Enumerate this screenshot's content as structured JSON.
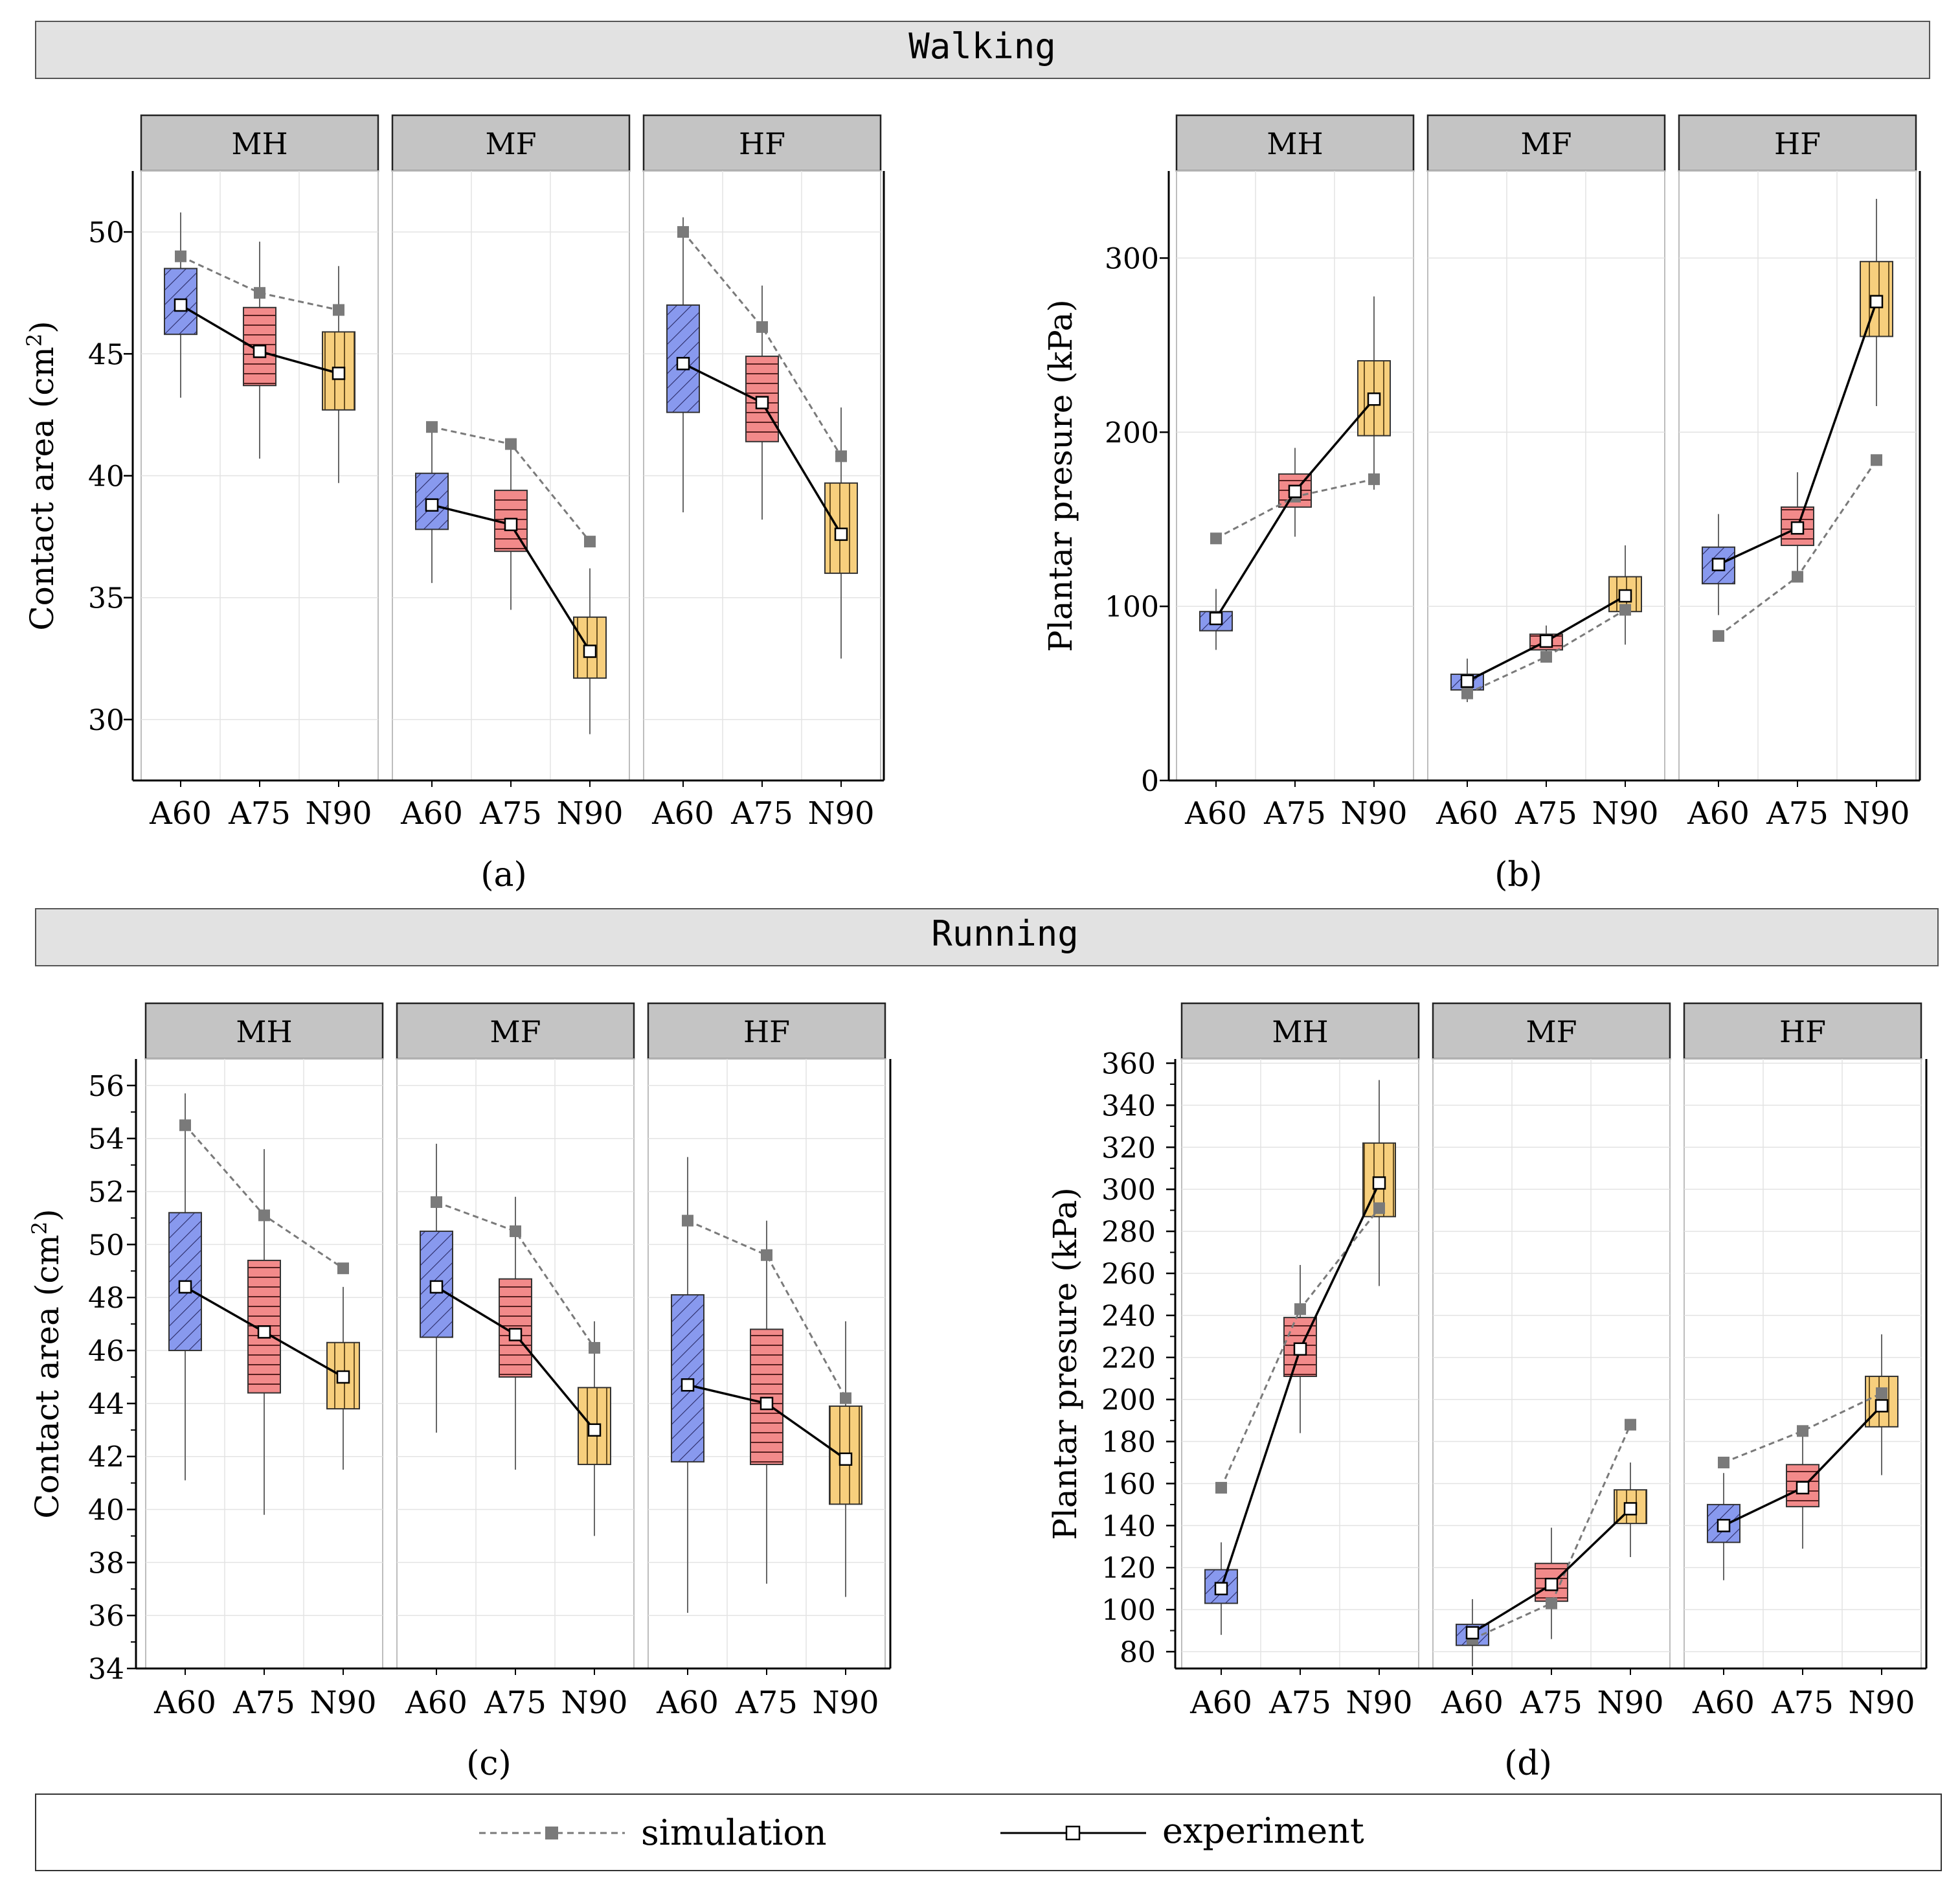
{
  "colors": {
    "A60": "#8899ee",
    "A75": "#f28a8a",
    "N90": "#f7cf7d",
    "simulation": "#7a7a7a",
    "experiment": "#000000"
  },
  "legend": {
    "simulation": "simulation",
    "experiment": "experiment"
  },
  "sections": [
    {
      "title": "Walking",
      "panels": [
        "a",
        "b"
      ]
    },
    {
      "title": "Running",
      "panels": [
        "c",
        "d"
      ]
    }
  ],
  "chart_data": [
    {
      "id": "a",
      "label": "(a)",
      "type": "box",
      "ylabel": "Contact area (cm",
      "ylabel_super": "2",
      "ylabel_close": ")",
      "ylim": [
        27.5,
        52.5
      ],
      "yticks": [
        30,
        35,
        40,
        45,
        50
      ],
      "minor_yticks": [],
      "categories": [
        "A60",
        "A75",
        "N90"
      ],
      "facets": [
        {
          "name": "MH",
          "boxes": [
            {
              "q1": 45.8,
              "q3": 48.5,
              "lo": 43.2,
              "hi": 50.8
            },
            {
              "q1": 43.7,
              "q3": 46.9,
              "lo": 40.7,
              "hi": 49.6
            },
            {
              "q1": 42.7,
              "q3": 45.9,
              "lo": 39.7,
              "hi": 48.6
            }
          ],
          "simulation": [
            49.0,
            47.5,
            46.8
          ],
          "experiment": [
            47.0,
            45.1,
            44.2
          ]
        },
        {
          "name": "MF",
          "boxes": [
            {
              "q1": 37.8,
              "q3": 40.1,
              "lo": 35.6,
              "hi": 42.0
            },
            {
              "q1": 36.9,
              "q3": 39.4,
              "lo": 34.5,
              "hi": 41.4
            },
            {
              "q1": 31.7,
              "q3": 34.2,
              "lo": 29.4,
              "hi": 36.2
            }
          ],
          "simulation": [
            42.0,
            41.3,
            37.3
          ],
          "experiment": [
            38.8,
            38.0,
            32.8
          ]
        },
        {
          "name": "HF",
          "boxes": [
            {
              "q1": 42.6,
              "q3": 47.0,
              "lo": 38.5,
              "hi": 50.6
            },
            {
              "q1": 41.4,
              "q3": 44.9,
              "lo": 38.2,
              "hi": 47.8
            },
            {
              "q1": 36.0,
              "q3": 39.7,
              "lo": 32.5,
              "hi": 42.8
            }
          ],
          "simulation": [
            50.0,
            46.1,
            40.8
          ],
          "experiment": [
            44.6,
            43.0,
            37.6
          ]
        }
      ]
    },
    {
      "id": "b",
      "label": "(b)",
      "type": "box",
      "ylabel": "Plantar presure (kPa)",
      "ylabel_super": "",
      "ylabel_close": "",
      "ylim": [
        0,
        350
      ],
      "yticks": [
        0,
        100,
        200,
        300
      ],
      "minor_yticks": [],
      "categories": [
        "A60",
        "A75",
        "N90"
      ],
      "facets": [
        {
          "name": "MH",
          "boxes": [
            {
              "q1": 86,
              "q3": 97,
              "lo": 75,
              "hi": 110
            },
            {
              "q1": 157,
              "q3": 176,
              "lo": 140,
              "hi": 191
            },
            {
              "q1": 198,
              "q3": 241,
              "lo": 167,
              "hi": 278
            }
          ],
          "simulation": [
            139,
            163,
            173
          ],
          "experiment": [
            93,
            166,
            219
          ]
        },
        {
          "name": "MF",
          "boxes": [
            {
              "q1": 52,
              "q3": 61,
              "lo": 45,
              "hi": 70
            },
            {
              "q1": 75,
              "q3": 84,
              "lo": 68,
              "hi": 89
            },
            {
              "q1": 97,
              "q3": 117,
              "lo": 78,
              "hi": 135
            }
          ],
          "simulation": [
            50,
            71,
            98
          ],
          "experiment": [
            57,
            80,
            106
          ]
        },
        {
          "name": "HF",
          "boxes": [
            {
              "q1": 113,
              "q3": 134,
              "lo": 95,
              "hi": 153
            },
            {
              "q1": 135,
              "q3": 157,
              "lo": 118,
              "hi": 177
            },
            {
              "q1": 255,
              "q3": 298,
              "lo": 215,
              "hi": 334
            }
          ],
          "simulation": [
            83,
            117,
            184
          ],
          "experiment": [
            124,
            145,
            275
          ]
        }
      ]
    },
    {
      "id": "c",
      "label": "(c)",
      "type": "box",
      "ylabel": "Contact area (cm",
      "ylabel_super": "2",
      "ylabel_close": ")",
      "ylim": [
        34,
        57
      ],
      "yticks": [
        34,
        36,
        38,
        40,
        42,
        44,
        46,
        48,
        50,
        52,
        54,
        56
      ],
      "minor_yticks": [
        35,
        37,
        39,
        41,
        43,
        45,
        47,
        49,
        51,
        53,
        55
      ],
      "categories": [
        "A60",
        "A75",
        "N90"
      ],
      "facets": [
        {
          "name": "MH",
          "boxes": [
            {
              "q1": 46.0,
              "q3": 51.2,
              "lo": 41.1,
              "hi": 55.7
            },
            {
              "q1": 44.4,
              "q3": 49.4,
              "lo": 39.8,
              "hi": 53.6
            },
            {
              "q1": 43.8,
              "q3": 46.3,
              "lo": 41.5,
              "hi": 48.4
            }
          ],
          "simulation": [
            54.5,
            51.1,
            49.1
          ],
          "experiment": [
            48.4,
            46.7,
            45.0
          ]
        },
        {
          "name": "MF",
          "boxes": [
            {
              "q1": 46.5,
              "q3": 50.5,
              "lo": 42.9,
              "hi": 53.8
            },
            {
              "q1": 45.0,
              "q3": 48.7,
              "lo": 41.5,
              "hi": 51.8
            },
            {
              "q1": 41.7,
              "q3": 44.6,
              "lo": 39.0,
              "hi": 47.1
            }
          ],
          "simulation": [
            51.6,
            50.5,
            46.1
          ],
          "experiment": [
            48.4,
            46.6,
            43.0
          ]
        },
        {
          "name": "HF",
          "boxes": [
            {
              "q1": 41.8,
              "q3": 48.1,
              "lo": 36.1,
              "hi": 53.3
            },
            {
              "q1": 41.7,
              "q3": 46.8,
              "lo": 37.2,
              "hi": 50.9
            },
            {
              "q1": 40.2,
              "q3": 43.9,
              "lo": 36.7,
              "hi": 47.1
            }
          ],
          "simulation": [
            50.9,
            49.6,
            44.2
          ],
          "experiment": [
            44.7,
            44.0,
            41.9
          ]
        }
      ]
    },
    {
      "id": "d",
      "label": "(d)",
      "type": "box",
      "ylabel": "Plantar presure (kPa)",
      "ylabel_super": "",
      "ylabel_close": "",
      "ylim": [
        72,
        362
      ],
      "yticks": [
        80,
        100,
        120,
        140,
        160,
        180,
        200,
        220,
        240,
        260,
        280,
        300,
        320,
        340,
        360
      ],
      "minor_yticks": [
        90,
        110,
        130,
        150,
        170,
        190,
        210,
        230,
        250,
        270,
        290,
        310,
        330,
        350
      ],
      "categories": [
        "A60",
        "A75",
        "N90"
      ],
      "facets": [
        {
          "name": "MH",
          "boxes": [
            {
              "q1": 103,
              "q3": 119,
              "lo": 88,
              "hi": 132
            },
            {
              "q1": 211,
              "q3": 239,
              "lo": 184,
              "hi": 264
            },
            {
              "q1": 287,
              "q3": 322,
              "lo": 254,
              "hi": 352
            }
          ],
          "simulation": [
            158,
            243,
            291
          ],
          "experiment": [
            110,
            224,
            303
          ]
        },
        {
          "name": "MF",
          "boxes": [
            {
              "q1": 83,
              "q3": 93,
              "lo": 73,
              "hi": 105
            },
            {
              "q1": 104,
              "q3": 122,
              "lo": 86,
              "hi": 139
            },
            {
              "q1": 141,
              "q3": 157,
              "lo": 125,
              "hi": 170
            }
          ],
          "simulation": [
            86,
            103,
            188
          ],
          "experiment": [
            89,
            112,
            148
          ]
        },
        {
          "name": "HF",
          "boxes": [
            {
              "q1": 132,
              "q3": 150,
              "lo": 114,
              "hi": 165
            },
            {
              "q1": 149,
              "q3": 169,
              "lo": 129,
              "hi": 185
            },
            {
              "q1": 187,
              "q3": 211,
              "lo": 164,
              "hi": 231
            }
          ],
          "simulation": [
            170,
            185,
            203
          ],
          "experiment": [
            140,
            158,
            197
          ]
        }
      ]
    }
  ]
}
